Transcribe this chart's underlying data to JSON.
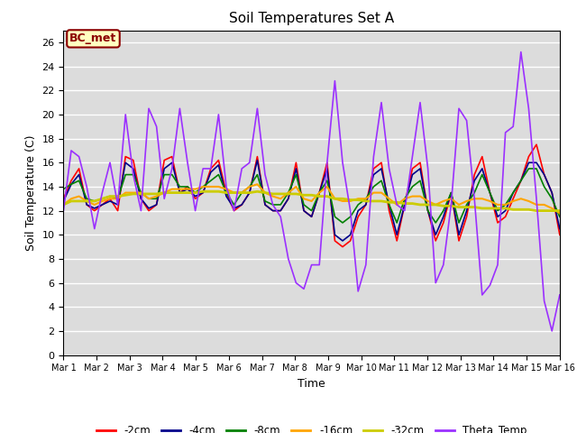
{
  "title": "Soil Temperatures Set A",
  "xlabel": "Time",
  "ylabel": "Soil Temperature (C)",
  "ylim": [
    0,
    27
  ],
  "yticks": [
    0,
    2,
    4,
    6,
    8,
    10,
    12,
    14,
    16,
    18,
    20,
    22,
    24,
    26
  ],
  "xtick_labels": [
    "Mar 1",
    "Mar 2",
    "Mar 3",
    "Mar 4",
    "Mar 5",
    "Mar 6",
    "Mar 7",
    "Mar 8",
    "Mar 9",
    "Mar 10",
    "Mar 11",
    "Mar 12",
    "Mar 13",
    "Mar 14",
    "Mar 15",
    "Mar 16"
  ],
  "annotation_text": "BC_met",
  "annotation_color": "#8B0000",
  "annotation_bg": "#FFFFC0",
  "plot_bg": "#DCDCDC",
  "fig_bg": "#FFFFFF",
  "series": {
    "-2cm": {
      "color": "#FF0000",
      "lw": 1.2,
      "values": [
        13.0,
        14.5,
        15.5,
        12.5,
        12.0,
        12.5,
        13.0,
        12.0,
        16.5,
        16.2,
        13.0,
        12.0,
        12.5,
        16.2,
        16.5,
        13.5,
        14.0,
        13.0,
        13.5,
        15.5,
        16.2,
        13.5,
        12.0,
        12.5,
        13.5,
        16.5,
        12.5,
        12.0,
        12.0,
        13.0,
        16.0,
        12.0,
        11.5,
        13.5,
        16.0,
        9.5,
        9.0,
        9.5,
        11.5,
        12.5,
        15.5,
        16.0,
        12.0,
        9.5,
        12.5,
        15.5,
        16.0,
        12.0,
        9.5,
        11.0,
        13.5,
        9.5,
        11.5,
        15.0,
        16.5,
        13.5,
        11.0,
        11.5,
        13.0,
        14.5,
        16.5,
        17.5,
        15.0,
        13.5,
        10.0
      ]
    },
    "-4cm": {
      "color": "#00008B",
      "lw": 1.2,
      "values": [
        12.8,
        14.2,
        15.0,
        12.5,
        12.2,
        12.5,
        12.8,
        12.5,
        16.0,
        15.5,
        13.0,
        12.2,
        12.5,
        15.5,
        16.0,
        13.5,
        13.8,
        13.2,
        13.5,
        15.2,
        15.8,
        13.2,
        12.2,
        12.5,
        13.5,
        16.2,
        12.5,
        12.0,
        12.0,
        13.0,
        15.5,
        12.0,
        11.5,
        13.5,
        15.5,
        10.0,
        9.5,
        10.0,
        12.0,
        12.5,
        15.0,
        15.5,
        12.5,
        10.0,
        12.5,
        15.0,
        15.5,
        12.0,
        10.0,
        11.5,
        13.5,
        10.0,
        12.0,
        14.5,
        15.5,
        13.5,
        11.5,
        12.0,
        13.5,
        14.5,
        16.0,
        16.0,
        15.0,
        13.5,
        10.5
      ]
    },
    "-8cm": {
      "color": "#008000",
      "lw": 1.2,
      "values": [
        13.8,
        14.2,
        14.5,
        13.0,
        12.8,
        13.0,
        13.2,
        13.0,
        15.0,
        15.0,
        13.5,
        13.0,
        13.0,
        15.0,
        15.0,
        14.0,
        14.0,
        13.5,
        14.0,
        14.5,
        15.0,
        13.5,
        12.5,
        13.5,
        14.0,
        15.0,
        12.8,
        12.5,
        12.5,
        13.5,
        15.0,
        12.5,
        12.0,
        13.5,
        14.5,
        11.5,
        11.0,
        11.5,
        12.5,
        13.0,
        14.0,
        14.5,
        12.5,
        11.0,
        13.0,
        14.0,
        14.5,
        12.0,
        11.0,
        12.0,
        13.5,
        11.0,
        12.5,
        13.5,
        15.0,
        13.5,
        12.0,
        12.5,
        13.5,
        14.5,
        15.5,
        15.5,
        14.0,
        13.0,
        11.5
      ]
    },
    "-16cm": {
      "color": "#FFA500",
      "lw": 1.5,
      "values": [
        12.5,
        13.0,
        13.2,
        12.8,
        12.5,
        12.8,
        13.0,
        13.0,
        13.5,
        13.5,
        13.5,
        13.0,
        13.2,
        13.5,
        13.8,
        13.8,
        13.8,
        13.8,
        14.0,
        14.0,
        14.0,
        13.8,
        13.5,
        13.5,
        14.0,
        14.2,
        13.5,
        13.2,
        13.0,
        13.5,
        14.0,
        13.0,
        12.8,
        13.5,
        14.0,
        13.0,
        12.8,
        12.8,
        13.0,
        13.0,
        13.5,
        13.5,
        13.0,
        12.5,
        13.0,
        13.2,
        13.2,
        12.8,
        12.5,
        12.8,
        13.0,
        12.5,
        12.8,
        13.0,
        13.0,
        12.8,
        12.5,
        12.5,
        12.8,
        13.0,
        12.8,
        12.5,
        12.5,
        12.2,
        11.8
      ]
    },
    "-32cm": {
      "color": "#CCCC00",
      "lw": 2.0,
      "values": [
        12.5,
        12.8,
        12.8,
        12.8,
        12.8,
        13.0,
        13.2,
        13.2,
        13.3,
        13.4,
        13.4,
        13.4,
        13.4,
        13.5,
        13.5,
        13.5,
        13.5,
        13.5,
        13.6,
        13.6,
        13.6,
        13.5,
        13.5,
        13.5,
        13.5,
        13.6,
        13.5,
        13.4,
        13.4,
        13.4,
        13.4,
        13.3,
        13.3,
        13.2,
        13.2,
        13.0,
        13.0,
        12.9,
        12.9,
        12.8,
        12.8,
        12.8,
        12.7,
        12.7,
        12.6,
        12.6,
        12.5,
        12.5,
        12.5,
        12.4,
        12.4,
        12.3,
        12.3,
        12.3,
        12.2,
        12.2,
        12.2,
        12.2,
        12.1,
        12.1,
        12.1,
        12.0,
        12.0,
        12.0,
        12.0
      ]
    },
    "Theta_Temp": {
      "color": "#9B30FF",
      "lw": 1.2,
      "values": [
        12.0,
        17.0,
        16.5,
        14.0,
        10.5,
        13.5,
        16.0,
        12.5,
        20.0,
        15.0,
        12.0,
        20.5,
        19.0,
        13.0,
        15.5,
        20.5,
        16.0,
        12.0,
        15.5,
        15.5,
        20.0,
        14.0,
        12.0,
        15.5,
        16.0,
        20.5,
        15.0,
        12.5,
        11.5,
        8.0,
        6.0,
        5.5,
        7.5,
        7.5,
        16.0,
        22.8,
        16.0,
        12.0,
        5.3,
        7.5,
        16.5,
        21.0,
        15.5,
        12.5,
        12.0,
        16.5,
        21.0,
        15.5,
        6.0,
        7.5,
        12.5,
        20.5,
        19.5,
        13.0,
        5.0,
        5.8,
        7.5,
        18.5,
        19.0,
        25.2,
        20.5,
        13.0,
        4.5,
        2.0,
        5.0
      ]
    }
  },
  "n_points": 65,
  "legend_items": [
    "-2cm",
    "-4cm",
    "-8cm",
    "-16cm",
    "-32cm",
    "Theta_Temp"
  ],
  "legend_colors": [
    "#FF0000",
    "#00008B",
    "#008000",
    "#FFA500",
    "#CCCC00",
    "#9B30FF"
  ]
}
